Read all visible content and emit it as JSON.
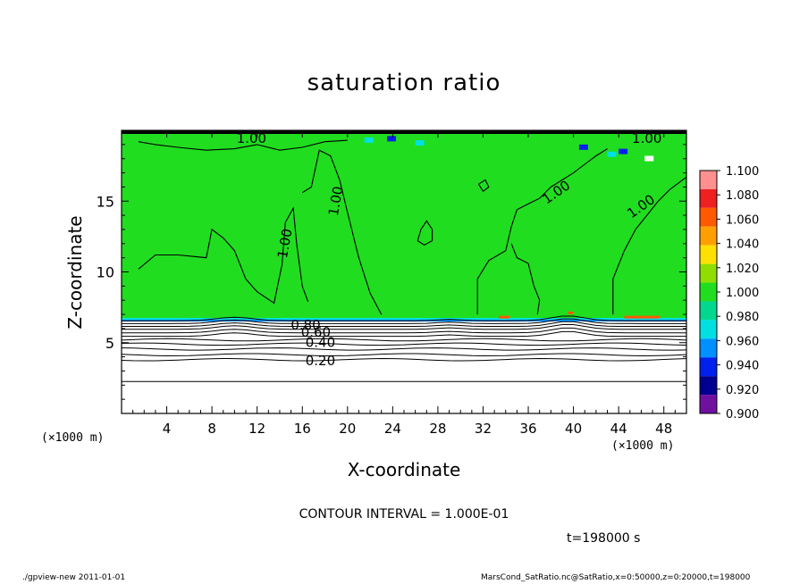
{
  "chart_data": {
    "type": "heatmap",
    "title": "saturation ratio",
    "xlabel": "X-coordinate",
    "ylabel": "Z-coordinate",
    "x_unit_left": "(×1000 m)",
    "x_unit_right": "(×1000 m)",
    "xlim": [
      0,
      50
    ],
    "ylim": [
      0,
      20
    ],
    "x_ticks": [
      4,
      8,
      12,
      16,
      20,
      24,
      28,
      32,
      36,
      40,
      44,
      48
    ],
    "y_ticks": [
      5,
      10,
      15
    ],
    "contour_levels": [
      "1.00",
      "1.00",
      "1.00",
      "1.00",
      "1.00",
      "1.00",
      "0.80",
      "0.60",
      "0.40",
      "0.20"
    ],
    "colorbar": {
      "labels": [
        "1.100",
        "1.080",
        "1.060",
        "1.040",
        "1.020",
        "1.000",
        "0.980",
        "0.960",
        "0.940",
        "0.920",
        "0.900"
      ],
      "colors": [
        "#ff9090",
        "#ee2020",
        "#ff5a00",
        "#ffa000",
        "#ffe000",
        "#90dd00",
        "#20dd20",
        "#00d890",
        "#00e0e0",
        "#0090ff",
        "#0020ee",
        "#000090",
        "#7010a0"
      ]
    },
    "contour_interval": "CONTOUR INTERVAL = 1.000E-01",
    "time": "t=198000 s"
  },
  "footer": {
    "left": "./gpview-new   2011-01-01",
    "right": "MarsCond_SatRatio.nc@SatRatio,x=0:50000,z=0:20000,t=198000"
  }
}
